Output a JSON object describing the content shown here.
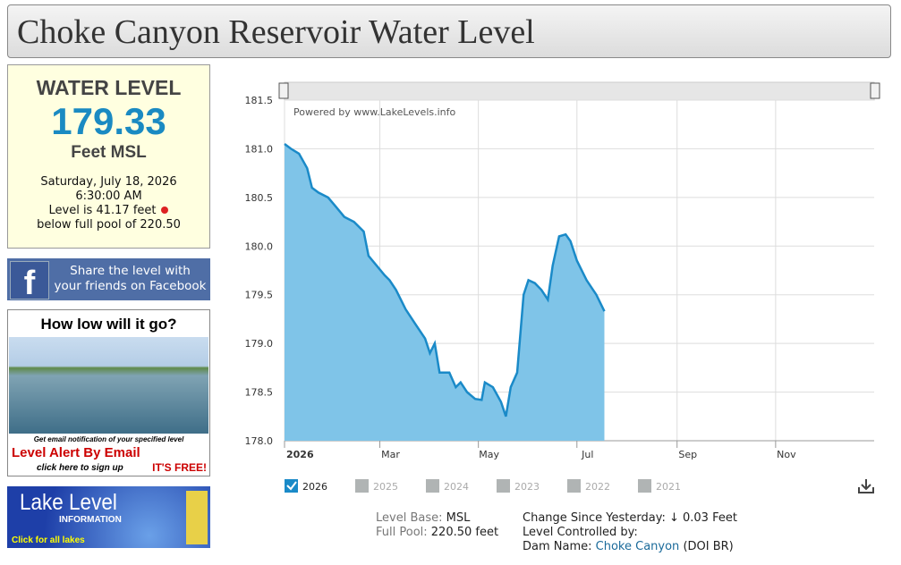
{
  "header": {
    "title": "Choke Canyon Reservoir Water Level"
  },
  "water_level": {
    "heading": "WATER LEVEL",
    "level": "179.33",
    "unit": "Feet MSL",
    "date": "Saturday, July 18, 2026",
    "time": "6:30:00 AM",
    "below": "Level is 41.17 feet",
    "pool": "below full pool of 220.50"
  },
  "facebook": {
    "lines": [
      "Share the level with",
      "your friends on Facebook"
    ]
  },
  "ad": {
    "question": "How low will it go?",
    "note": "Get email notification of your specified level",
    "alert": "Level Alert By Email",
    "signup": "click here to sign up",
    "free": "IT'S FREE!"
  },
  "lake_level": {
    "title": "Lake Level",
    "subtitle": "INFORMATION",
    "link": "Click for all lakes"
  },
  "chart_data": {
    "type": "area",
    "annotation": "Powered by www.LakeLevels.info",
    "x": [
      1,
      5,
      10,
      15,
      18,
      22,
      28,
      33,
      38,
      44,
      50,
      53,
      58,
      63,
      66,
      70,
      76,
      82,
      88,
      91,
      94,
      97,
      103,
      107,
      110,
      114,
      119,
      123,
      125,
      130,
      135,
      138,
      141,
      145,
      149,
      152,
      156,
      160,
      164,
      167,
      171,
      175,
      178,
      182,
      188,
      194,
      199
    ],
    "series": [
      {
        "name": "2026",
        "color": "#1a8ac8",
        "fill": "#7fc4e8",
        "values": [
          181.05,
          181.0,
          180.95,
          180.8,
          180.6,
          180.55,
          180.5,
          180.4,
          180.3,
          180.25,
          180.15,
          179.9,
          179.8,
          179.7,
          179.65,
          179.55,
          179.35,
          179.2,
          179.05,
          178.9,
          179.0,
          178.7,
          178.7,
          178.55,
          178.6,
          178.5,
          178.43,
          178.42,
          178.6,
          178.55,
          178.4,
          178.25,
          178.55,
          178.7,
          179.5,
          179.65,
          179.62,
          179.55,
          179.45,
          179.8,
          180.1,
          180.12,
          180.05,
          179.85,
          179.65,
          179.5,
          179.33
        ]
      }
    ],
    "legend": [
      {
        "label": "2026",
        "checked": true
      },
      {
        "label": "2025",
        "checked": false
      },
      {
        "label": "2024",
        "checked": false
      },
      {
        "label": "2023",
        "checked": false
      },
      {
        "label": "2022",
        "checked": false
      },
      {
        "label": "2021",
        "checked": false
      }
    ],
    "xlim": [
      1,
      366
    ],
    "xticks": [
      {
        "value": 1,
        "label": "2026"
      },
      {
        "value": 60,
        "label": "Mar"
      },
      {
        "value": 121,
        "label": "May"
      },
      {
        "value": 182,
        "label": "Jul"
      },
      {
        "value": 244,
        "label": "Sep"
      },
      {
        "value": 305,
        "label": "Nov"
      }
    ],
    "ylim": [
      178.0,
      181.5
    ],
    "yticks": [
      {
        "value": 178,
        "label": "178.0"
      },
      178.5,
      {
        "value": 179,
        "label": "179.0"
      },
      179.5,
      {
        "value": 180,
        "label": "180.0"
      },
      180.5,
      {
        "value": 181,
        "label": "181.0"
      },
      181.5
    ],
    "grid": true
  },
  "info": {
    "base_label": "Level Base:",
    "base": "MSL",
    "pool_label": "Full Pool:",
    "pool": "220.50 feet",
    "change_label": "Change Since Yesterday:",
    "change": "↓ 0.03 Feet",
    "controlled": "Level Controlled by:",
    "dam_label": "Dam Name:",
    "dam": "Choke Canyon",
    "agency": "(DOI BR)"
  }
}
